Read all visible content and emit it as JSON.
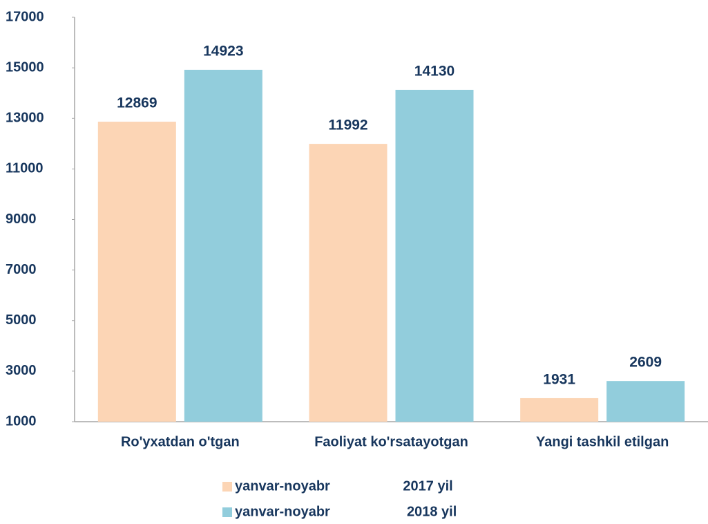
{
  "chart_data": {
    "type": "bar",
    "categories": [
      "Ro'yxatdan o'tgan",
      "Faoliyat ko'rsatayotgan",
      "Yangi tashkil etilgan"
    ],
    "series": [
      {
        "name": "yanvar-noyabr                   2017 yil",
        "color": "#fcd5b5",
        "values": [
          12869,
          11992,
          1931
        ]
      },
      {
        "name": "yanvar-noyabr                    2018 yil",
        "color": "#92cddc",
        "values": [
          14923,
          14130,
          2609
        ]
      }
    ],
    "ylim": [
      1000,
      17000
    ],
    "yticks": [
      1000,
      3000,
      5000,
      7000,
      9000,
      11000,
      13000,
      15000,
      17000
    ]
  }
}
